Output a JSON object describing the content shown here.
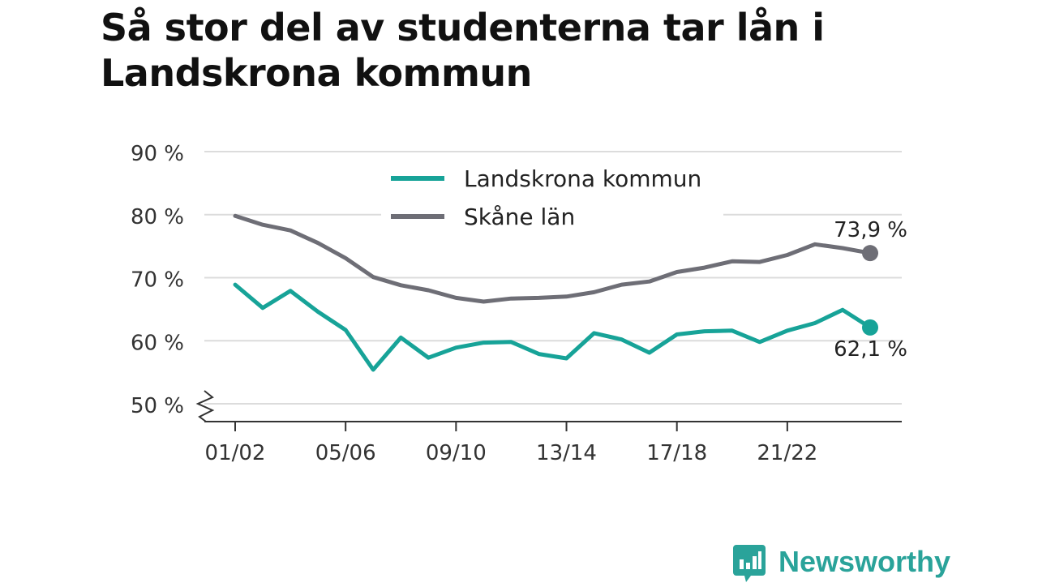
{
  "title": "Så stor del av studenterna tar lån i Landskrona kommun",
  "brand": {
    "name": "Newsworthy"
  },
  "colors": {
    "landskrona": "#17a398",
    "skane": "#6e6e76",
    "grid": "#dcdcdc",
    "axis": "#333333",
    "brand": "#2aa39a"
  },
  "chart_data": {
    "type": "line",
    "title": "Så stor del av studenterna tar lån i Landskrona kommun",
    "xlabel": "",
    "ylabel": "",
    "ylim": [
      50,
      90
    ],
    "y_ticks": [
      50,
      60,
      70,
      80,
      90
    ],
    "y_tick_labels": [
      "50 %",
      "60 %",
      "70 %",
      "80 %",
      "90 %"
    ],
    "y_axis_break": true,
    "grid": true,
    "legend": "top-center",
    "x": [
      "01/02",
      "02/03",
      "03/04",
      "04/05",
      "05/06",
      "06/07",
      "07/08",
      "08/09",
      "09/10",
      "10/11",
      "11/12",
      "12/13",
      "13/14",
      "14/15",
      "15/16",
      "16/17",
      "17/18",
      "18/19",
      "19/20",
      "20/21",
      "21/22",
      "22/23",
      "23/24",
      "24/25"
    ],
    "x_tick_labels": [
      "01/02",
      "05/06",
      "09/10",
      "13/14",
      "17/18",
      "21/22"
    ],
    "series": [
      {
        "name": "Landskrona kommun",
        "values": [
          68.9,
          65.2,
          67.9,
          64.6,
          61.7,
          55.4,
          60.5,
          57.3,
          58.9,
          59.7,
          59.8,
          57.9,
          57.2,
          61.2,
          60.2,
          58.1,
          61.0,
          61.5,
          61.6,
          59.8,
          61.6,
          62.8,
          64.9,
          62.1
        ],
        "end_label": "62,1 %"
      },
      {
        "name": "Skåne län",
        "values": [
          79.8,
          78.4,
          77.5,
          75.5,
          73.1,
          70.1,
          68.8,
          68.0,
          66.8,
          66.2,
          66.7,
          66.8,
          67.0,
          67.7,
          68.9,
          69.4,
          70.9,
          71.6,
          72.6,
          72.5,
          73.6,
          75.3,
          74.7,
          73.9
        ],
        "end_label": "73,9 %"
      }
    ]
  }
}
